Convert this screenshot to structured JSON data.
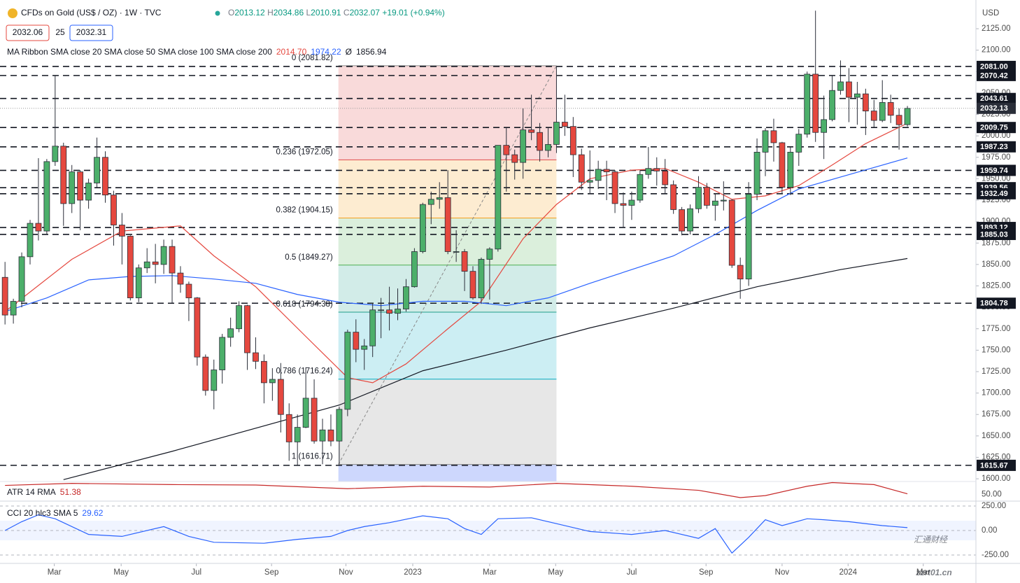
{
  "header": {
    "title": "CFDs on Gold (US$ / OZ) · 1W · TVC",
    "ohlc_keys": [
      "O",
      "H",
      "L",
      "C"
    ],
    "change": "+19.01 (+0.94%)",
    "bid": "2032.06",
    "spread": "25",
    "ask": "2032.31"
  },
  "chart_data": {
    "type": "candlestick",
    "currency": "USD",
    "up_color": "#4caf6a",
    "down_color": "#e5483f",
    "xlim": [
      -0.6,
      116.2
    ],
    "xticks": [
      {
        "value": 5.9,
        "label": "Mar"
      },
      {
        "value": 13.9,
        "label": "May"
      },
      {
        "value": 22.9,
        "label": "Jul"
      },
      {
        "value": 31.9,
        "label": "Sep"
      },
      {
        "value": 40.8,
        "label": "Nov"
      },
      {
        "value": 48.8,
        "label": "2023"
      },
      {
        "value": 58,
        "label": "Mar"
      },
      {
        "value": 65.9,
        "label": "May"
      },
      {
        "value": 75,
        "label": "Jul"
      },
      {
        "value": 83.9,
        "label": "Sep"
      },
      {
        "value": 93,
        "label": "Nov"
      },
      {
        "value": 100.9,
        "label": "2024"
      },
      {
        "value": 109.9,
        "label": "Mar"
      }
    ],
    "ylim": [
      1596.8,
      2158.5
    ],
    "yticks": [
      {
        "value": 1600,
        "label": "1600.00"
      },
      {
        "value": 1625,
        "label": "1625.00"
      },
      {
        "value": 1650,
        "label": "1650.00"
      },
      {
        "value": 1675,
        "label": "1675.00"
      },
      {
        "value": 1700,
        "label": "1700.00"
      },
      {
        "value": 1725,
        "label": "1725.00"
      },
      {
        "value": 1750,
        "label": "1750.00"
      },
      {
        "value": 1775,
        "label": "1775.00"
      },
      {
        "value": 1800,
        "label": "1800.00"
      },
      {
        "value": 1825,
        "label": "1825.00"
      },
      {
        "value": 1850,
        "label": "1850.00"
      },
      {
        "value": 1875,
        "label": "1875.00"
      },
      {
        "value": 1900,
        "label": "1900.00"
      },
      {
        "value": 1925,
        "label": "1925.00"
      },
      {
        "value": 1950,
        "label": "1950.00"
      },
      {
        "value": 1975,
        "label": "1975.00"
      },
      {
        "value": 2000,
        "label": "2000.00"
      },
      {
        "value": 2025,
        "label": "2025.00"
      },
      {
        "value": 2050,
        "label": "2050.00"
      },
      {
        "value": 2075,
        "label": "2075.00"
      },
      {
        "value": 2100,
        "label": "2100.00"
      },
      {
        "value": 2125,
        "label": "2125.00"
      }
    ],
    "ohlc": [
      [
        1835,
        1853,
        1780,
        1791
      ],
      [
        1791,
        1810,
        1781,
        1807
      ],
      [
        1807,
        1864,
        1800,
        1859
      ],
      [
        1859,
        1902,
        1850,
        1898
      ],
      [
        1898,
        1974,
        1878,
        1889
      ],
      [
        1889,
        1973,
        1885,
        1970
      ],
      [
        1970,
        2070,
        1965,
        1988
      ],
      [
        1988,
        1992,
        1895,
        1921
      ],
      [
        1921,
        1966,
        1910,
        1958
      ],
      [
        1958,
        1960,
        1890,
        1925
      ],
      [
        1925,
        1950,
        1915,
        1945
      ],
      [
        1945,
        1998,
        1940,
        1975
      ],
      [
        1975,
        1982,
        1922,
        1931
      ],
      [
        1931,
        1936,
        1872,
        1896
      ],
      [
        1896,
        1910,
        1850,
        1883
      ],
      [
        1883,
        1884,
        1808,
        1811
      ],
      [
        1811,
        1850,
        1806,
        1846
      ],
      [
        1846,
        1869,
        1840,
        1853
      ],
      [
        1853,
        1874,
        1828,
        1850
      ],
      [
        1850,
        1879,
        1839,
        1871
      ],
      [
        1871,
        1879,
        1805,
        1840
      ],
      [
        1840,
        1848,
        1817,
        1827
      ],
      [
        1827,
        1830,
        1784,
        1811
      ],
      [
        1811,
        1812,
        1732,
        1742
      ],
      [
        1742,
        1745,
        1697,
        1703
      ],
      [
        1703,
        1739,
        1681,
        1727
      ],
      [
        1727,
        1769,
        1711,
        1765
      ],
      [
        1765,
        1788,
        1754,
        1775
      ],
      [
        1775,
        1807,
        1771,
        1802
      ],
      [
        1802,
        1803,
        1727,
        1747
      ],
      [
        1747,
        1765,
        1728,
        1737
      ],
      [
        1737,
        1745,
        1688,
        1712
      ],
      [
        1712,
        1729,
        1691,
        1716
      ],
      [
        1716,
        1735,
        1654,
        1675
      ],
      [
        1675,
        1688,
        1621,
        1643
      ],
      [
        1643,
        1675,
        1615,
        1660
      ],
      [
        1660,
        1730,
        1659,
        1694
      ],
      [
        1694,
        1716,
        1641,
        1644
      ],
      [
        1644,
        1670,
        1617,
        1657
      ],
      [
        1657,
        1675,
        1638,
        1644
      ],
      [
        1644,
        1684,
        1617,
        1681
      ],
      [
        1681,
        1774,
        1673,
        1771
      ],
      [
        1771,
        1786,
        1736,
        1751
      ],
      [
        1751,
        1763,
        1727,
        1755
      ],
      [
        1755,
        1805,
        1742,
        1797
      ],
      [
        1797,
        1811,
        1764,
        1797
      ],
      [
        1797,
        1824,
        1773,
        1793
      ],
      [
        1793,
        1822,
        1785,
        1798
      ],
      [
        1798,
        1833,
        1795,
        1824
      ],
      [
        1824,
        1869,
        1823,
        1865
      ],
      [
        1865,
        1922,
        1863,
        1920
      ],
      [
        1920,
        1935,
        1897,
        1926
      ],
      [
        1926,
        1946,
        1915,
        1928
      ],
      [
        1928,
        1960,
        1862,
        1865
      ],
      [
        1865,
        1890,
        1853,
        1865
      ],
      [
        1865,
        1868,
        1819,
        1842
      ],
      [
        1842,
        1848,
        1809,
        1811
      ],
      [
        1811,
        1858,
        1804,
        1856
      ],
      [
        1856,
        1870,
        1809,
        1868
      ],
      [
        1868,
        1989,
        1865,
        1989
      ],
      [
        1989,
        2009,
        1935,
        1978
      ],
      [
        1978,
        1984,
        1949,
        1969
      ],
      [
        1969,
        2032,
        1950,
        2007
      ],
      [
        2007,
        2048,
        1995,
        2004
      ],
      [
        2004,
        2015,
        1970,
        1983
      ],
      [
        1983,
        2009,
        1975,
        1990
      ],
      [
        1990,
        2081,
        1980,
        2016
      ],
      [
        2016,
        2048,
        2000,
        2011
      ],
      [
        2011,
        2022,
        1952,
        1978
      ],
      [
        1978,
        1985,
        1937,
        1946
      ],
      [
        1946,
        1983,
        1932,
        1948
      ],
      [
        1948,
        1971,
        1938,
        1961
      ],
      [
        1961,
        1971,
        1925,
        1958
      ],
      [
        1958,
        1960,
        1910,
        1921
      ],
      [
        1921,
        1934,
        1893,
        1919
      ],
      [
        1919,
        1935,
        1902,
        1925
      ],
      [
        1925,
        1960,
        1922,
        1955
      ],
      [
        1955,
        1987,
        1950,
        1962
      ],
      [
        1962,
        1975,
        1942,
        1959
      ],
      [
        1959,
        1973,
        1933,
        1943
      ],
      [
        1943,
        1948,
        1909,
        1914
      ],
      [
        1914,
        1917,
        1884,
        1889
      ],
      [
        1889,
        1920,
        1885,
        1915
      ],
      [
        1915,
        1953,
        1910,
        1940
      ],
      [
        1940,
        1945,
        1915,
        1919
      ],
      [
        1919,
        1933,
        1901,
        1924
      ],
      [
        1924,
        1947,
        1913,
        1925
      ],
      [
        1925,
        1926,
        1846,
        1849
      ],
      [
        1849,
        1858,
        1810,
        1833
      ],
      [
        1833,
        1946,
        1825,
        1932
      ],
      [
        1932,
        1997,
        1925,
        1981
      ],
      [
        1981,
        2009,
        1953,
        2006
      ],
      [
        2006,
        2020,
        1970,
        1992
      ],
      [
        1992,
        1993,
        1932,
        1940
      ],
      [
        1940,
        1987,
        1931,
        1981
      ],
      [
        1981,
        2008,
        1965,
        2002
      ],
      [
        2002,
        2075,
        1998,
        2072
      ],
      [
        2072,
        2146,
        1993,
        2004
      ],
      [
        2004,
        2047,
        1973,
        2019
      ],
      [
        2019,
        2071,
        2017,
        2053
      ],
      [
        2053,
        2088,
        2048,
        2063
      ],
      [
        2063,
        2079,
        2016,
        2045
      ],
      [
        2045,
        2063,
        2013,
        2049
      ],
      [
        2049,
        2055,
        2001,
        2029
      ],
      [
        2029,
        2042,
        2010,
        2018
      ],
      [
        2018,
        2065,
        2016,
        2039
      ],
      [
        2039,
        2048,
        2015,
        2024
      ],
      [
        2024,
        2032,
        1984,
        2013
      ],
      [
        2013.12,
        2034.86,
        2010.91,
        2032.07
      ]
    ],
    "ma_label": "MA Ribbon SMA close 20 SMA close 50 SMA close 100 SMA close 200",
    "ma_values": [
      {
        "text": "2014.70",
        "color": "#e5483f"
      },
      {
        "text": "1974.22",
        "color": "#2962ff"
      },
      {
        "text": "Ø",
        "color": "#131722"
      },
      {
        "text": "1856.94",
        "color": "#131722"
      }
    ],
    "series": [
      {
        "color": "#e5483f",
        "x": [
          0,
          8,
          14,
          21,
          25,
          30,
          36,
          41,
          44,
          48,
          53,
          57,
          62,
          66,
          70,
          75,
          79,
          83,
          87,
          91,
          95,
          99,
          103,
          108
        ],
        "values": [
          1795,
          1856,
          1889,
          1895,
          1860,
          1824,
          1766,
          1718,
          1712,
          1734,
          1775,
          1807,
          1880,
          1920,
          1950,
          1960,
          1962,
          1946,
          1926,
          1930,
          1942,
          1966,
          1991,
          2014.7
        ]
      },
      {
        "color": "#2962ff",
        "x": [
          0,
          5,
          10,
          15,
          20,
          25,
          30,
          35,
          40,
          45,
          50,
          55,
          60,
          65,
          70,
          75,
          80,
          85,
          90,
          95,
          100,
          108
        ],
        "values": [
          1795,
          1811,
          1832,
          1836,
          1837,
          1833,
          1828,
          1815,
          1806,
          1802,
          1807,
          1807,
          1802,
          1811,
          1828,
          1844,
          1860,
          1885,
          1913,
          1938,
          1952,
          1974.22
        ]
      },
      {
        "color": "#131722",
        "x": [
          7,
          20,
          40,
          50,
          60,
          70,
          80,
          90,
          100,
          108
        ],
        "values": [
          1599,
          1632,
          1686,
          1726,
          1750,
          1776,
          1799,
          1824,
          1844,
          1856.94
        ]
      }
    ],
    "levels": [
      {
        "value": 2081,
        "label": "2081.00"
      },
      2070.42,
      2043.61,
      2009.75,
      1987.23,
      1959.74,
      1939.56,
      1932.49,
      1893.12,
      1885.03,
      1804.78,
      1615.67
    ],
    "last_price": 2032.13,
    "fib": {
      "x": [
        39.9,
        66
      ],
      "levels": [
        {
          "label": "0 (2081.82)",
          "price": 2081.82,
          "color": "#888888"
        },
        {
          "label": "0.236 (1972.05)",
          "price": 1972.05,
          "color": "#e04848"
        },
        {
          "label": "0.382 (1904.15)",
          "price": 1904.15,
          "color": "#f59e1b"
        },
        {
          "label": "0.5 (1849.27)",
          "price": 1849.27,
          "color": "#4caf50"
        },
        {
          "label": "0.618 (1794.38)",
          "price": 1794.38,
          "color": "#1f9e8a"
        },
        {
          "label": "0.786 (1716.24)",
          "price": 1716.24,
          "color": "#00acc1"
        },
        {
          "label": "1 (1616.71)",
          "price": 1616.71,
          "color": "#888888"
        }
      ]
    }
  },
  "atr": {
    "type": "line",
    "label": "ATR 14 RMA",
    "color": "#c62828",
    "ylim": [
      30,
      85
    ],
    "yticks": [
      {
        "value": 50,
        "label": "50.00"
      }
    ],
    "x": [
      0,
      8,
      20,
      30,
      41,
      50,
      58,
      66,
      75,
      83,
      88,
      91,
      96,
      99,
      104,
      108
    ],
    "values": [
      72,
      77,
      74,
      73,
      64,
      70,
      68,
      77,
      70,
      60,
      42,
      47,
      70,
      79,
      74,
      51.38
    ]
  },
  "cci": {
    "type": "line",
    "label": "CCI 20 hlc3 SMA 5",
    "color": "#2962ff",
    "ylim": [
      -300,
      300
    ],
    "band": [
      -100,
      100
    ],
    "yticks": [
      {
        "value": 250,
        "label": "250.00"
      },
      {
        "value": 0,
        "label": "0.00"
      },
      {
        "value": -250,
        "label": "-250.00"
      }
    ],
    "x": [
      0,
      2,
      4,
      6,
      10,
      14,
      19,
      22,
      25,
      31,
      35,
      39,
      41,
      43,
      46,
      50,
      53,
      55,
      57,
      59,
      63,
      66,
      70,
      75,
      79,
      83,
      85,
      87,
      89,
      91,
      93,
      96,
      98,
      101,
      105,
      108
    ],
    "values": [
      0,
      90,
      160,
      120,
      -40,
      -60,
      40,
      -60,
      -120,
      -130,
      -90,
      -60,
      0,
      40,
      80,
      150,
      120,
      20,
      -40,
      120,
      130,
      70,
      -10,
      -40,
      0,
      -80,
      20,
      -230,
      -70,
      110,
      50,
      120,
      110,
      90,
      50,
      29.62
    ]
  },
  "watermark": [
    "汇通财经",
    "zzrt01.cn"
  ]
}
